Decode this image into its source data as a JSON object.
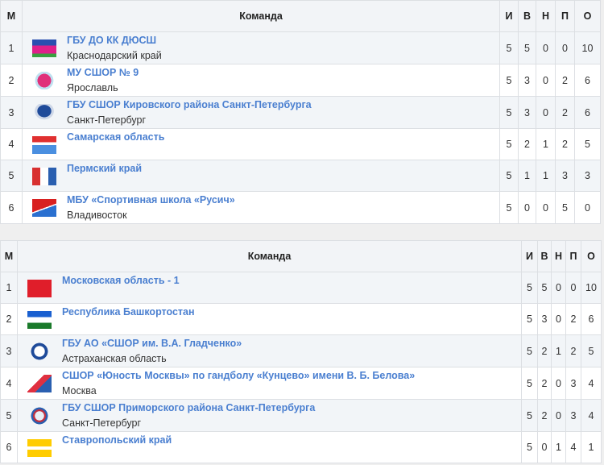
{
  "headers": {
    "place": "М",
    "team": "Команда",
    "games": "И",
    "wins": "В",
    "draws": "Н",
    "losses": "П",
    "points": "О"
  },
  "colors": {
    "link": "#4a7fd0",
    "header_bg": "#f2f4f7",
    "row_alt_bg": "#f2f5f8"
  },
  "tables": [
    {
      "rows": [
        {
          "place": "1",
          "name": "ГБУ ДО КК ДЮСШ",
          "city": "Краснодарский край",
          "logo": "krasnodar-flag",
          "games": "5",
          "wins": "5",
          "draws": "0",
          "losses": "0",
          "points": "10"
        },
        {
          "place": "2",
          "name": "МУ СШОР № 9",
          "city": "Ярославль",
          "logo": "sshor9-emblem",
          "games": "5",
          "wins": "3",
          "draws": "0",
          "losses": "2",
          "points": "6"
        },
        {
          "place": "3",
          "name": "ГБУ СШОР Кировского района Санкт-Петербурга",
          "city": "Санкт-Петербург",
          "logo": "kirovsky-emblem",
          "games": "5",
          "wins": "3",
          "draws": "0",
          "losses": "2",
          "points": "6"
        },
        {
          "place": "4",
          "name": "Самарская область",
          "city": "",
          "logo": "samara-flag",
          "games": "5",
          "wins": "2",
          "draws": "1",
          "losses": "2",
          "points": "5"
        },
        {
          "place": "5",
          "name": "Пермский край",
          "city": "",
          "logo": "perm-flag",
          "games": "5",
          "wins": "1",
          "draws": "1",
          "losses": "3",
          "points": "3"
        },
        {
          "place": "6",
          "name": "МБУ «Спортивная школа «Русич»",
          "city": "Владивосток",
          "logo": "vladivostok-flag",
          "games": "5",
          "wins": "0",
          "draws": "0",
          "losses": "5",
          "points": "0"
        }
      ]
    },
    {
      "rows": [
        {
          "place": "1",
          "name": "Московская область - 1",
          "city": "",
          "logo": "moscow-oblast-flag",
          "games": "5",
          "wins": "5",
          "draws": "0",
          "losses": "0",
          "points": "10"
        },
        {
          "place": "2",
          "name": "Республика Башкортостан",
          "city": "",
          "logo": "bashkortostan-flag",
          "games": "5",
          "wins": "3",
          "draws": "0",
          "losses": "2",
          "points": "6"
        },
        {
          "place": "3",
          "name": "ГБУ АО «СШОР им. В.А. Гладченко»",
          "city": "Астраханская область",
          "logo": "gladchenko-emblem",
          "games": "5",
          "wins": "2",
          "draws": "1",
          "losses": "2",
          "points": "5"
        },
        {
          "place": "4",
          "name": "СШОР «Юность Москвы» по гандболу «Кунцево» имени В. Б. Белова»",
          "city": "Москва",
          "logo": "yunost-moskvy-emblem",
          "games": "5",
          "wins": "2",
          "draws": "0",
          "losses": "3",
          "points": "4"
        },
        {
          "place": "5",
          "name": "ГБУ СШОР Приморского района Санкт-Петербурга",
          "city": "Санкт-Петербург",
          "logo": "primorsky-emblem",
          "games": "5",
          "wins": "2",
          "draws": "0",
          "losses": "3",
          "points": "4"
        },
        {
          "place": "6",
          "name": "Ставропольский край",
          "city": "",
          "logo": "stavropol-flag",
          "games": "5",
          "wins": "0",
          "draws": "1",
          "losses": "4",
          "points": "1"
        }
      ]
    }
  ]
}
